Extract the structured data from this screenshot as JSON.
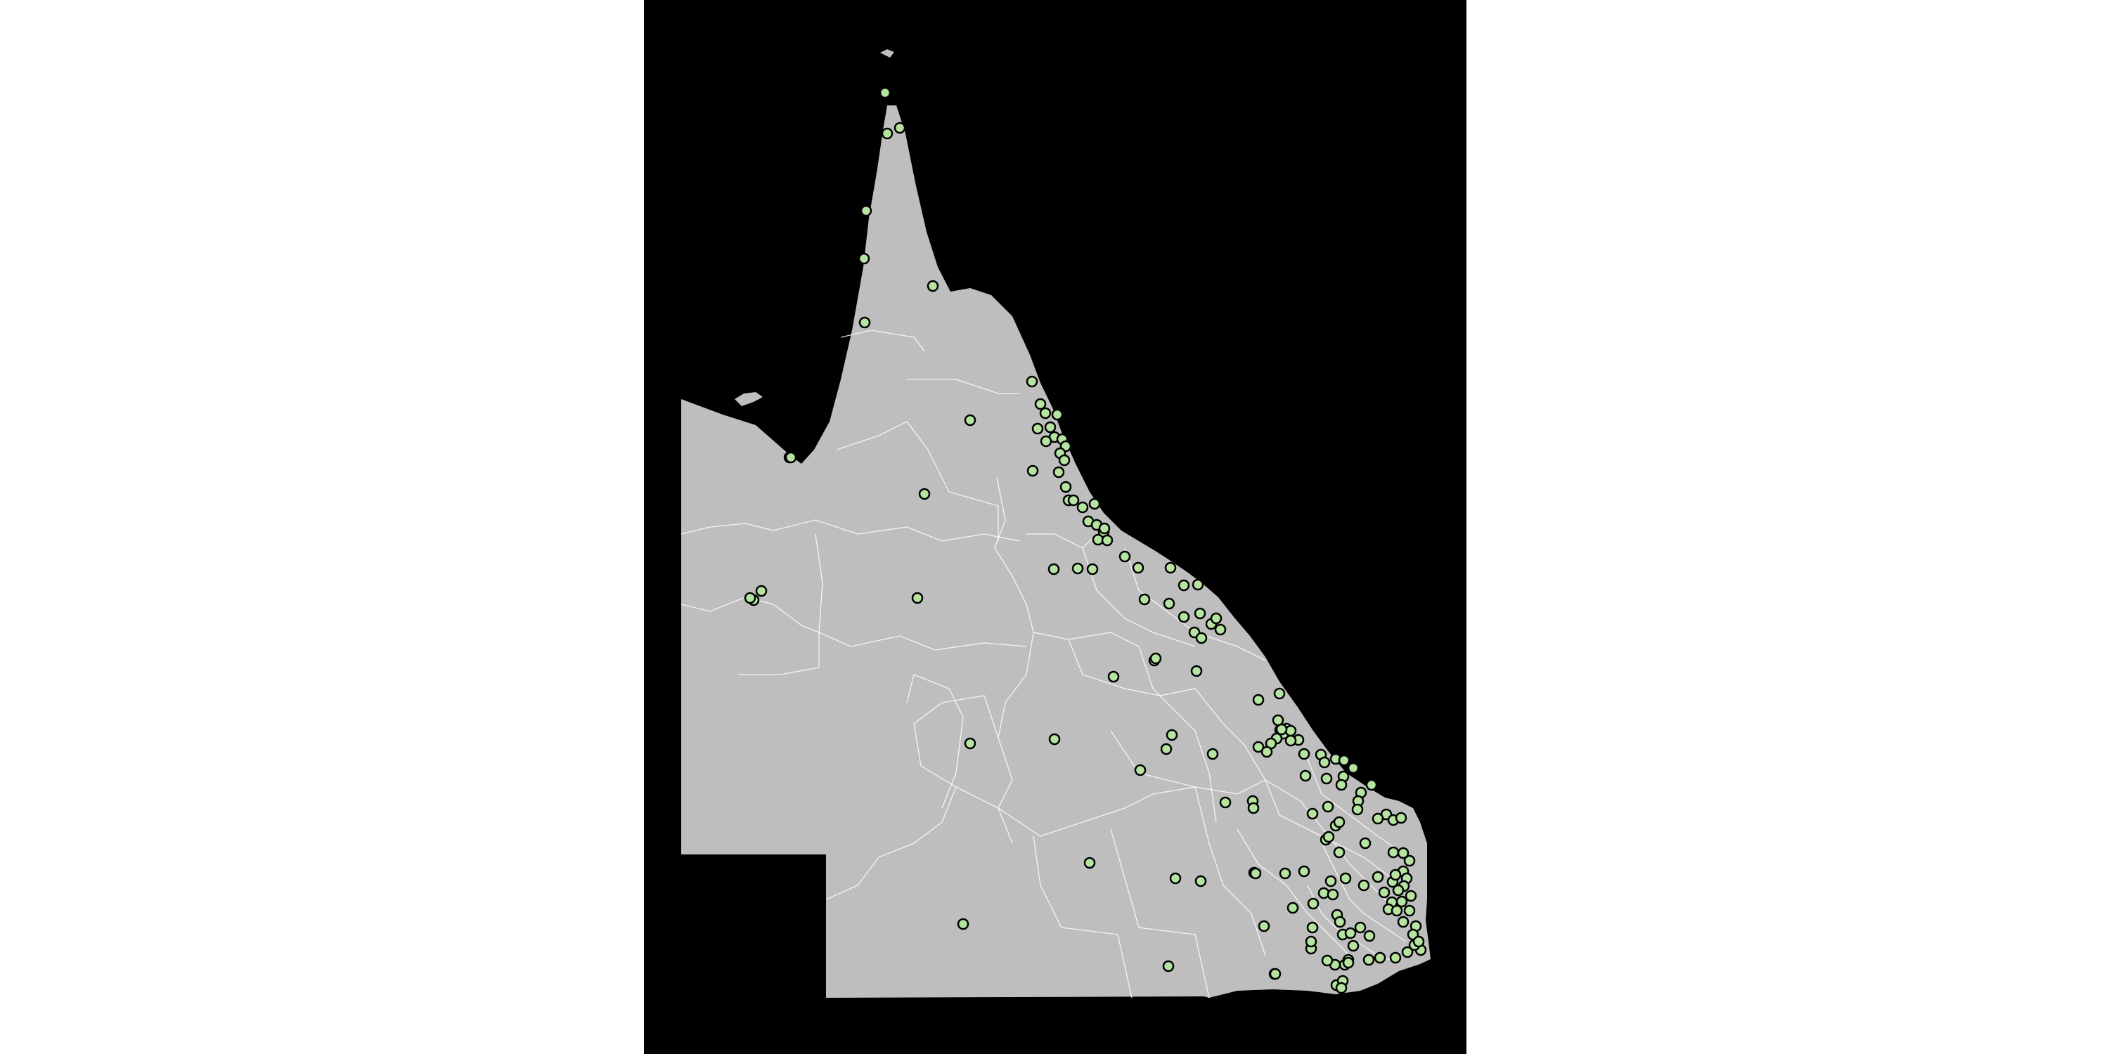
{
  "map": {
    "background_color": "#000000",
    "page_background": "#ffffff",
    "land_color": "#bebebe",
    "border_color": "#ffffff",
    "marker_fill": "#b5e3a0",
    "marker_stroke": "#000000"
  }
}
